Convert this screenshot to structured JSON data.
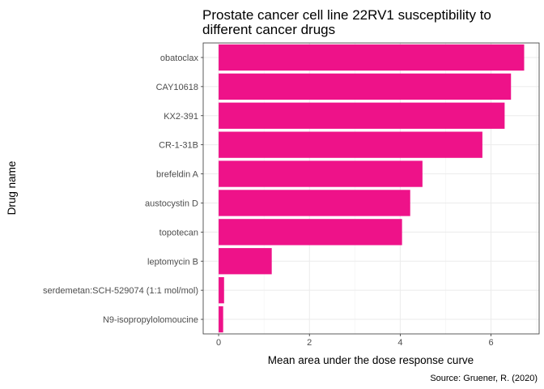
{
  "chart_data": {
    "type": "bar",
    "orientation": "horizontal",
    "title_lines": [
      "Prostate cancer cell line 22RV1 susceptibility to",
      "different cancer drugs"
    ],
    "xlabel": "Mean area under the dose response curve",
    "ylabel": "Drug name",
    "caption": "Source: Gruener, R. (2020)",
    "categories": [
      "obatoclax",
      "CAY10618",
      "KX2-391",
      "CR-1-31B",
      "brefeldin A",
      "austocystin D",
      "topotecan",
      "leptomycin B",
      "serdemetan:SCH-529074 (1:1 mol/mol)",
      "N9-isopropylolomoucine"
    ],
    "values": [
      6.73,
      6.44,
      6.3,
      5.81,
      4.49,
      4.22,
      4.04,
      1.17,
      0.12,
      0.1
    ],
    "x_ticks": [
      0,
      2,
      4,
      6
    ],
    "xlim": [
      -0.34,
      7.06
    ],
    "bar_color": "#EE1289",
    "grid": true,
    "theme": "light"
  }
}
